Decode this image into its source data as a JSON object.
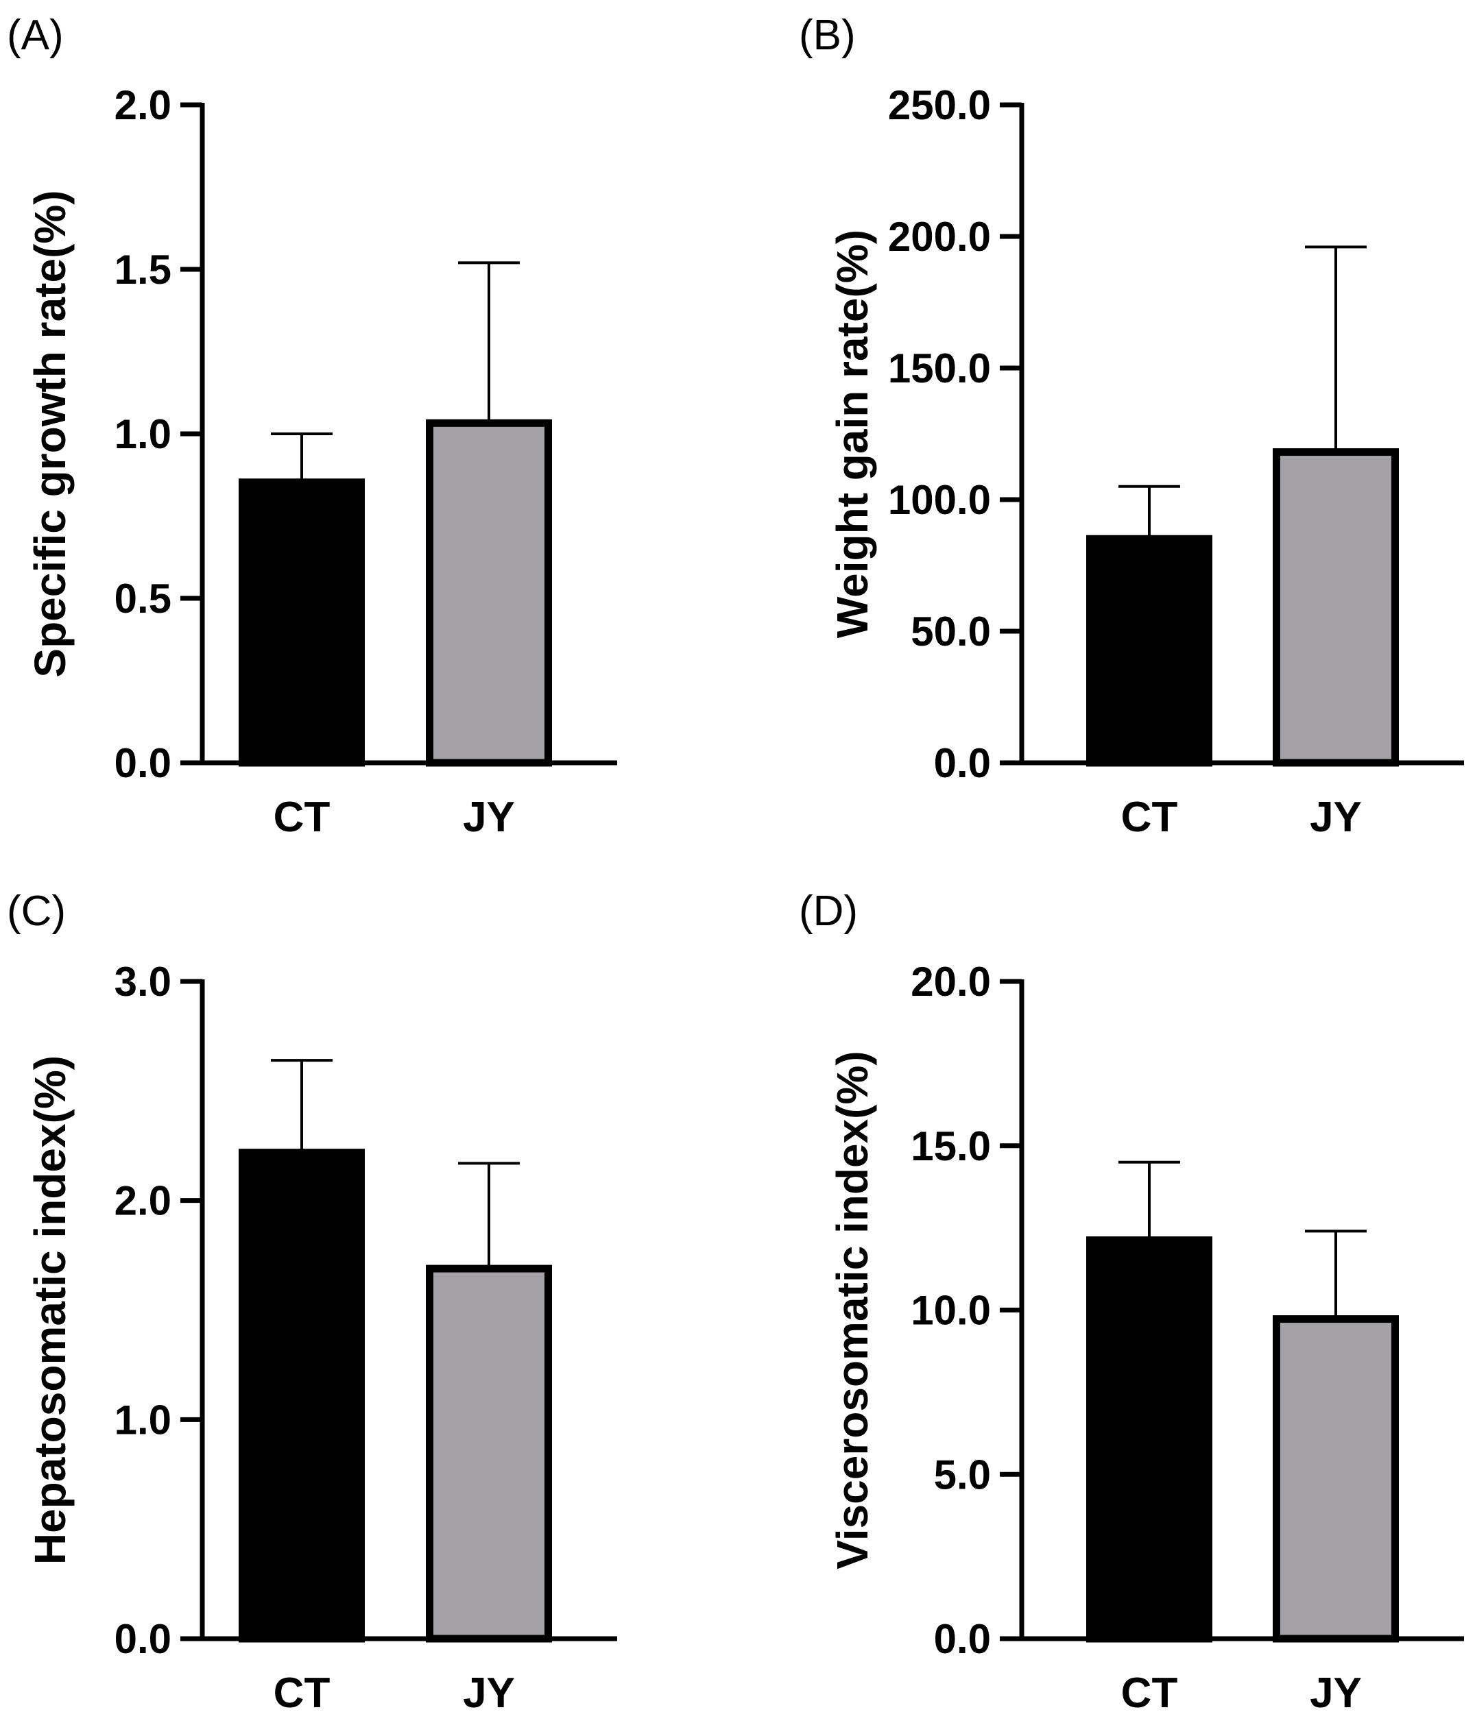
{
  "chart_data": [
    {
      "type": "bar",
      "panel_label": "(A)",
      "ylabel": "Specific growth rate(%)",
      "categories": [
        "CT",
        "JY"
      ],
      "values": [
        0.86,
        1.04
      ],
      "errors": [
        0.14,
        0.48
      ],
      "ylim": [
        0,
        2.0
      ],
      "yticks": [
        0.0,
        0.5,
        1.0,
        1.5,
        2.0
      ],
      "ytick_labels": [
        "0.0",
        "0.5",
        "1.0",
        "1.5",
        "2.0"
      ],
      "bar_colors": [
        "#000000",
        "#a3a1a6"
      ],
      "grid": false
    },
    {
      "type": "bar",
      "panel_label": "(B)",
      "ylabel": "Weight gain rate(%)",
      "categories": [
        "CT",
        "JY"
      ],
      "values": [
        86.0,
        119.0
      ],
      "errors": [
        19.0,
        77.0
      ],
      "ylim": [
        0,
        250.0
      ],
      "yticks": [
        0.0,
        50.0,
        100.0,
        150.0,
        200.0,
        250.0
      ],
      "ytick_labels": [
        "0.0",
        "50.0",
        "100.0",
        "150.0",
        "200.0",
        "250.0"
      ],
      "bar_colors": [
        "#000000",
        "#a3a1a6"
      ],
      "grid": false
    },
    {
      "type": "bar",
      "panel_label": "(C)",
      "ylabel": "Hepatosomatic index(%)",
      "categories": [
        "CT",
        "JY"
      ],
      "values": [
        2.23,
        1.7
      ],
      "errors": [
        0.41,
        0.47
      ],
      "ylim": [
        0,
        3.0
      ],
      "yticks": [
        0.0,
        1.0,
        2.0,
        3.0
      ],
      "ytick_labels": [
        "0.0",
        "1.0",
        "2.0",
        "3.0"
      ],
      "bar_colors": [
        "#000000",
        "#a3a1a6"
      ],
      "grid": false
    },
    {
      "type": "bar",
      "panel_label": "(D)",
      "ylabel": "Viscerosomatic index(%)",
      "categories": [
        "CT",
        "JY"
      ],
      "values": [
        12.2,
        9.8
      ],
      "errors": [
        2.3,
        2.6
      ],
      "ylim": [
        0,
        20.0
      ],
      "yticks": [
        0.0,
        5.0,
        10.0,
        15.0,
        20.0
      ],
      "ytick_labels": [
        "0.0",
        "5.0",
        "10.0",
        "15.0",
        "20.0"
      ],
      "bar_colors": [
        "#000000",
        "#a3a1a6"
      ],
      "grid": false
    }
  ]
}
